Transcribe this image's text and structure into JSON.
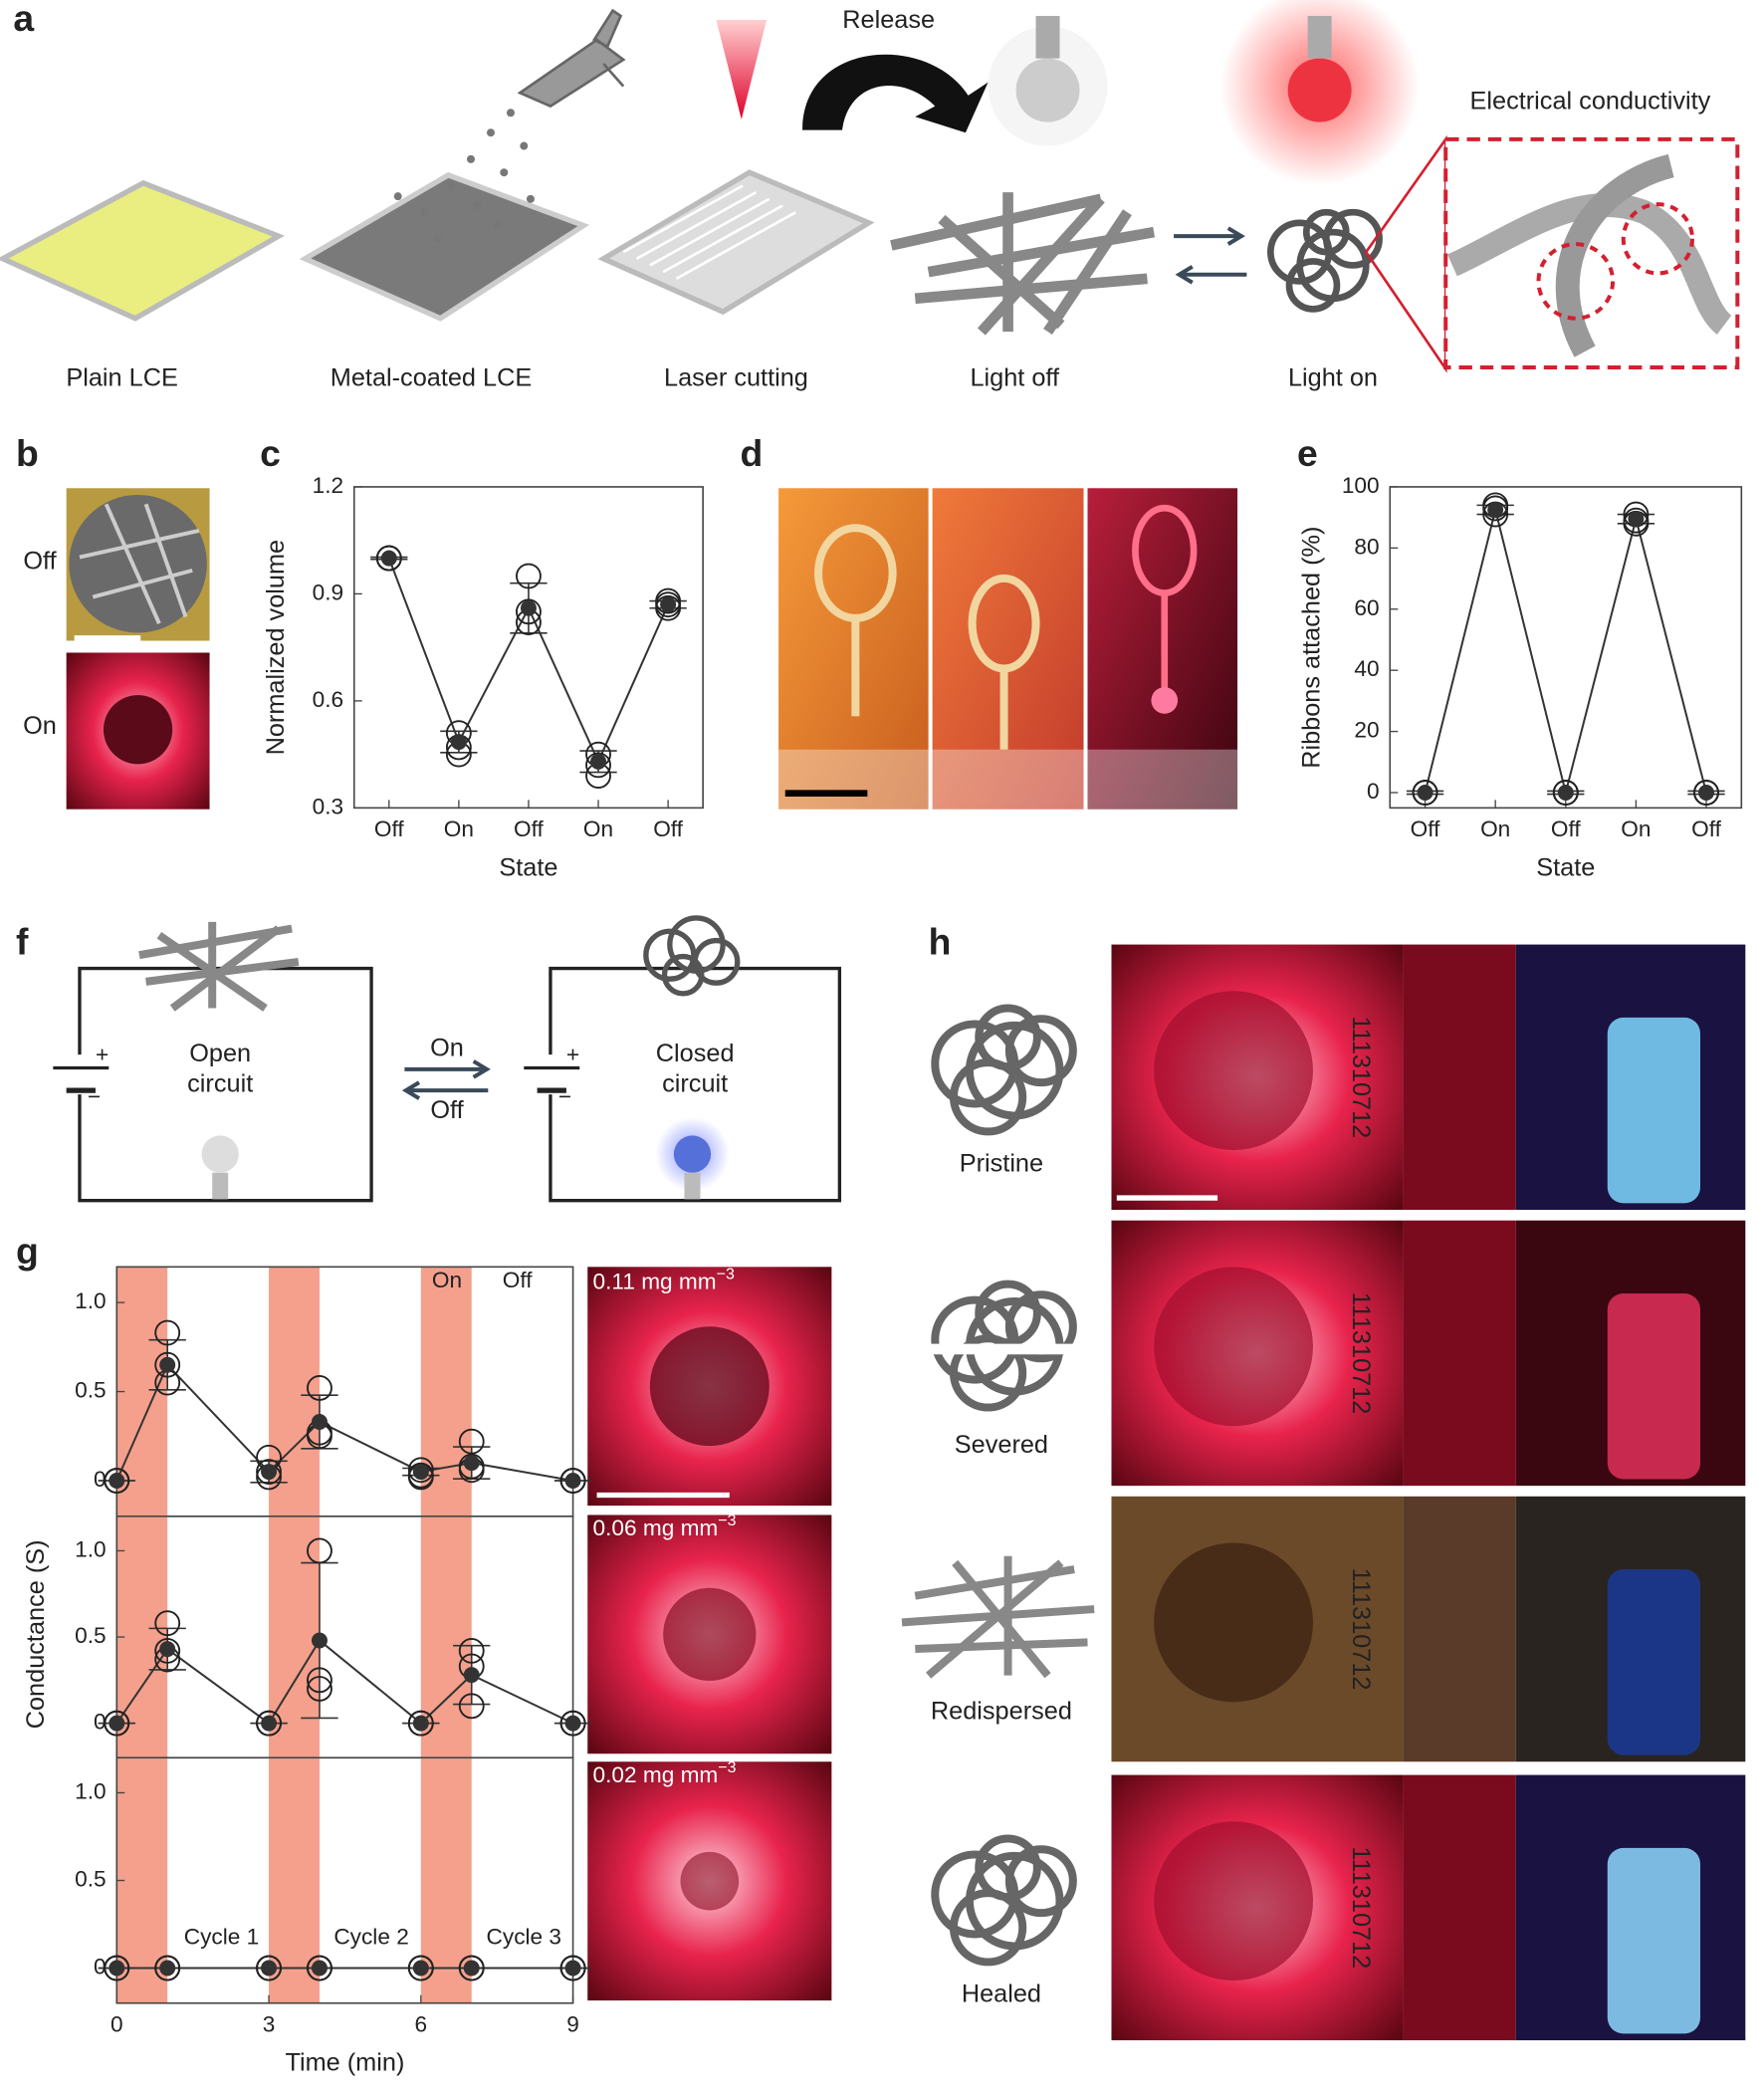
{
  "figure": {
    "panels": [
      "a",
      "b",
      "c",
      "d",
      "e",
      "f",
      "g",
      "h"
    ],
    "a": {
      "steps": [
        "Plain LCE",
        "Metal-coated LCE",
        "Laser cutting",
        "Light off",
        "Light on"
      ],
      "release": "Release",
      "inset": "Electrical conductivity"
    },
    "b": {
      "labels": [
        "Off",
        "On"
      ]
    },
    "f": {
      "open": [
        "Open",
        "circuit"
      ],
      "closed": [
        "Closed",
        "circuit"
      ],
      "on": "On",
      "off": "Off",
      "plus": "+",
      "minus": "−"
    },
    "g": {
      "densities": [
        {
          "text": "0.11 mg mm",
          "exp": "−3"
        },
        {
          "text": "0.06 mg mm",
          "exp": "−3"
        },
        {
          "text": "0.02 mg mm",
          "exp": "−3"
        }
      ]
    },
    "h": {
      "states": [
        "Pristine",
        "Severed",
        "Redispersed",
        "Healed"
      ],
      "code": "111310712"
    }
  },
  "chart_data": [
    {
      "type": "line",
      "categories": [
        "Off",
        "On",
        "Off",
        "On",
        "Off"
      ],
      "values": [
        1.0,
        0.485,
        0.86,
        0.43,
        0.87
      ],
      "errors": [
        0.003,
        0.03,
        0.07,
        0.03,
        0.01
      ],
      "replicates": [
        [
          1.0,
          1.0,
          1.0
        ],
        [
          0.51,
          0.47,
          0.45
        ],
        [
          0.95,
          0.85,
          0.82
        ],
        [
          0.45,
          0.42,
          0.39
        ],
        [
          0.88,
          0.87,
          0.86
        ]
      ],
      "xlabel": "State",
      "ylabel": "Normalized volume",
      "ylim": [
        0.3,
        1.2
      ],
      "yticks": [
        0.3,
        0.6,
        0.9,
        1.2
      ],
      "color": "#333333"
    },
    {
      "type": "line",
      "categories": [
        "Off",
        "On",
        "Off",
        "On",
        "Off"
      ],
      "values": [
        0,
        92.5,
        0,
        89.5,
        0
      ],
      "errors": [
        0.5,
        1.5,
        0.5,
        1.5,
        0.5
      ],
      "replicates": [
        [
          0,
          0,
          0
        ],
        [
          94,
          93,
          91
        ],
        [
          0,
          0,
          0
        ],
        [
          91,
          89,
          88
        ],
        [
          0,
          0,
          0
        ]
      ],
      "xlabel": "State",
      "ylabel": "Ribbons attached (%)",
      "ylim": [
        -5,
        100
      ],
      "yticks": [
        0,
        20,
        40,
        60,
        80,
        100
      ],
      "color": "#333333"
    },
    {
      "type": "line",
      "x": [
        0,
        1,
        3,
        4,
        6,
        7,
        9
      ],
      "values": [
        0,
        0.65,
        0.05,
        0.33,
        0.05,
        0.1,
        0
      ],
      "errors": [
        0,
        0.14,
        0.06,
        0.15,
        0.02,
        0.09,
        0
      ],
      "replicates": [
        [
          0,
          0,
          0
        ],
        [
          0.83,
          0.65,
          0.55
        ],
        [
          0.13,
          0.05,
          0.02
        ],
        [
          0.52,
          0.27,
          0.25
        ],
        [
          0.06,
          0.03,
          0.02
        ],
        [
          0.22,
          0.08,
          0.06
        ],
        [
          0,
          0,
          0
        ]
      ],
      "on_intervals": [
        [
          0,
          1
        ],
        [
          3,
          4
        ],
        [
          6,
          7
        ]
      ],
      "band_color": "#f4a08c",
      "annotations": [
        "On",
        "Off"
      ],
      "xlim": [
        0,
        9
      ],
      "ylim": [
        -0.2,
        1.2
      ],
      "yticks": [
        0,
        0.5,
        {
          "value": 1,
          "label": "1.0"
        }
      ],
      "color": "#333333"
    },
    {
      "type": "line",
      "x": [
        0,
        1,
        3,
        4,
        6,
        7,
        9
      ],
      "values": [
        0,
        0.43,
        0,
        0.48,
        0,
        0.28,
        0
      ],
      "errors": [
        0,
        0.12,
        0,
        0.45,
        0,
        0.17,
        0
      ],
      "replicates": [
        [
          0,
          0,
          0
        ],
        [
          0.58,
          0.42,
          0.37
        ],
        [
          0,
          0,
          0
        ],
        [
          1.0,
          0.25,
          0.2
        ],
        [
          0,
          0,
          0
        ],
        [
          0.42,
          0.33,
          0.1
        ],
        [
          0,
          0,
          0
        ]
      ],
      "on_intervals": [
        [
          0,
          1
        ],
        [
          3,
          4
        ],
        [
          6,
          7
        ]
      ],
      "band_color": "#f4a08c",
      "ylabel": "Conductance (S)",
      "xlim": [
        0,
        9
      ],
      "ylim": [
        -0.2,
        1.2
      ],
      "yticks": [
        0,
        0.5,
        {
          "value": 1,
          "label": "1.0"
        }
      ],
      "color": "#333333"
    },
    {
      "type": "line",
      "x": [
        0,
        1,
        3,
        4,
        6,
        7,
        9
      ],
      "values": [
        0,
        0,
        0,
        0,
        0,
        0,
        0
      ],
      "errors": [
        0,
        0,
        0,
        0,
        0,
        0,
        0
      ],
      "replicates": [
        [
          0,
          0,
          0
        ],
        [
          0,
          0,
          0
        ],
        [
          0,
          0,
          0
        ],
        [
          0,
          0,
          0
        ],
        [
          0,
          0,
          0
        ],
        [
          0,
          0,
          0
        ],
        [
          0,
          0,
          0
        ]
      ],
      "on_intervals": [
        [
          0,
          1
        ],
        [
          3,
          4
        ],
        [
          6,
          7
        ]
      ],
      "band_color": "#f4a08c",
      "annotations": [
        "Cycle 1",
        "Cycle 2",
        "Cycle 3"
      ],
      "xlabel": "Time (min)",
      "xlim": [
        0,
        9
      ],
      "ylim": [
        -0.2,
        1.2
      ],
      "yticks": [
        0,
        0.5,
        {
          "value": 1,
          "label": "1.0"
        }
      ],
      "xticks": [
        0,
        3,
        6,
        9
      ],
      "color": "#333333"
    }
  ]
}
